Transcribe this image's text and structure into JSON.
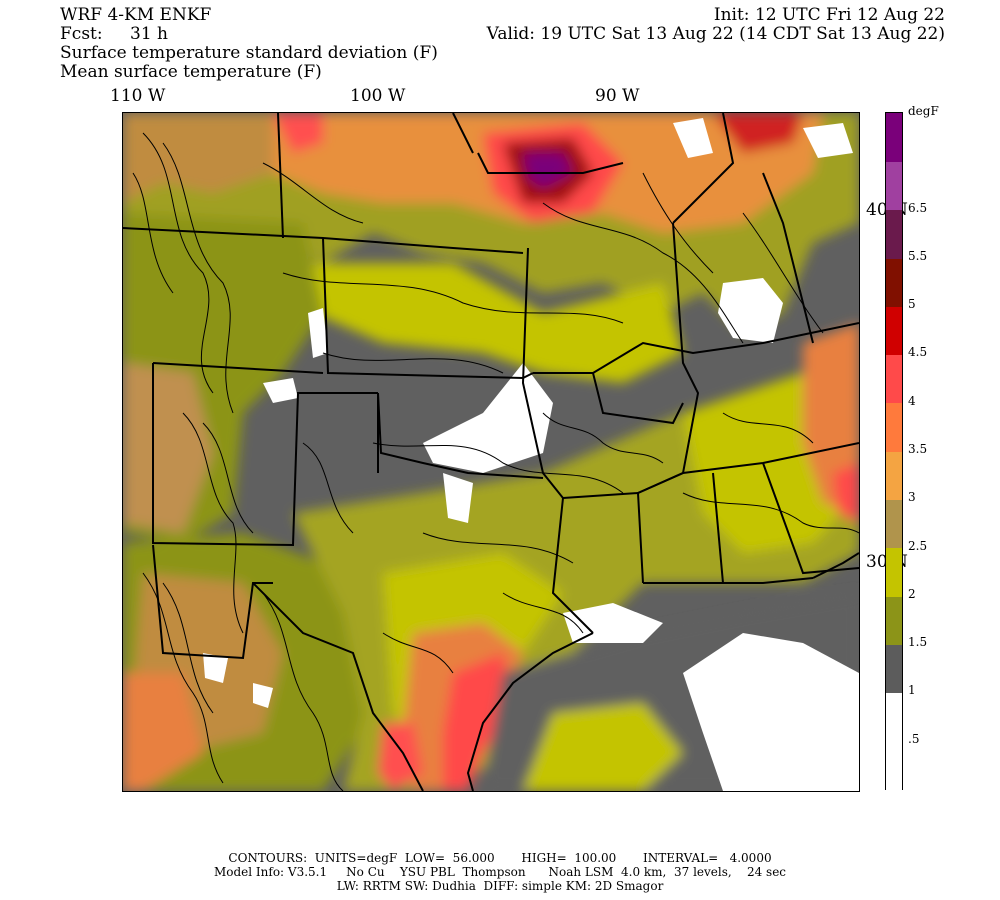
{
  "header": {
    "model": "WRF 4-KM ENKF",
    "fcst_label": "Fcst:",
    "fcst_value": "31 h",
    "init": "Init: 12 UTC Fri 12 Aug 22",
    "valid": "Valid: 19 UTC Sat 13 Aug 22 (14 CDT Sat 13 Aug 22)",
    "field_shaded": "Surface temperature standard deviation (F)",
    "field_contour": "Mean surface temperature (F)"
  },
  "longitude_labels": [
    "110 W",
    "100 W",
    "90 W"
  ],
  "latitude_labels": [
    "40 N",
    "30 N"
  ],
  "colorbar": {
    "units": "degF",
    "labels": [
      "6.5",
      "5.5",
      "5",
      "4.5",
      "4",
      "3.5",
      "3",
      "2.5",
      "2",
      "1.5",
      "1",
      ".5"
    ],
    "colors": [
      "#ffffff",
      "#ffffff",
      "#5c5c5c",
      "#8c9418",
      "#c4c400",
      "#b0944c",
      "#f4a442",
      "#ff7a3c",
      "#ff4a4a",
      "#d00000",
      "#801000",
      "#6a1a4c",
      "#a040a0",
      "#7a007a"
    ]
  },
  "footer": {
    "contours": "CONTOURS:  UNITS=degF  LOW=  56.000       HIGH=  100.00       INTERVAL=   4.0000",
    "model_info": "Model Info: V3.5.1     No Cu    YSU PBL  Thompson      Noah LSM  4.0 km,  37 levels,    24 sec",
    "physics": "LW: RRTM SW: Dudhia  DIFF: simple KM: 2D Smagor"
  }
}
